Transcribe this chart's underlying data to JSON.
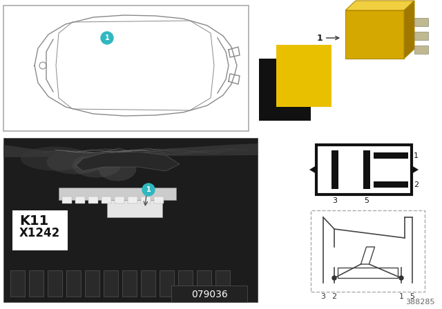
{
  "bg_color": "#ffffff",
  "car_line_color": "#888888",
  "marker_color": "#30b8c0",
  "marker_text": "1",
  "yellow_color": "#e8c000",
  "black_color": "#111111",
  "circuit_line_color": "#444444",
  "circuit_dash_color": "#aaaaaa",
  "label_K11": "K11",
  "label_X1242": "X1242",
  "photo_label": "079036",
  "ref_number": "388285",
  "pin_labels": [
    "3",
    "2",
    "1",
    "5"
  ]
}
